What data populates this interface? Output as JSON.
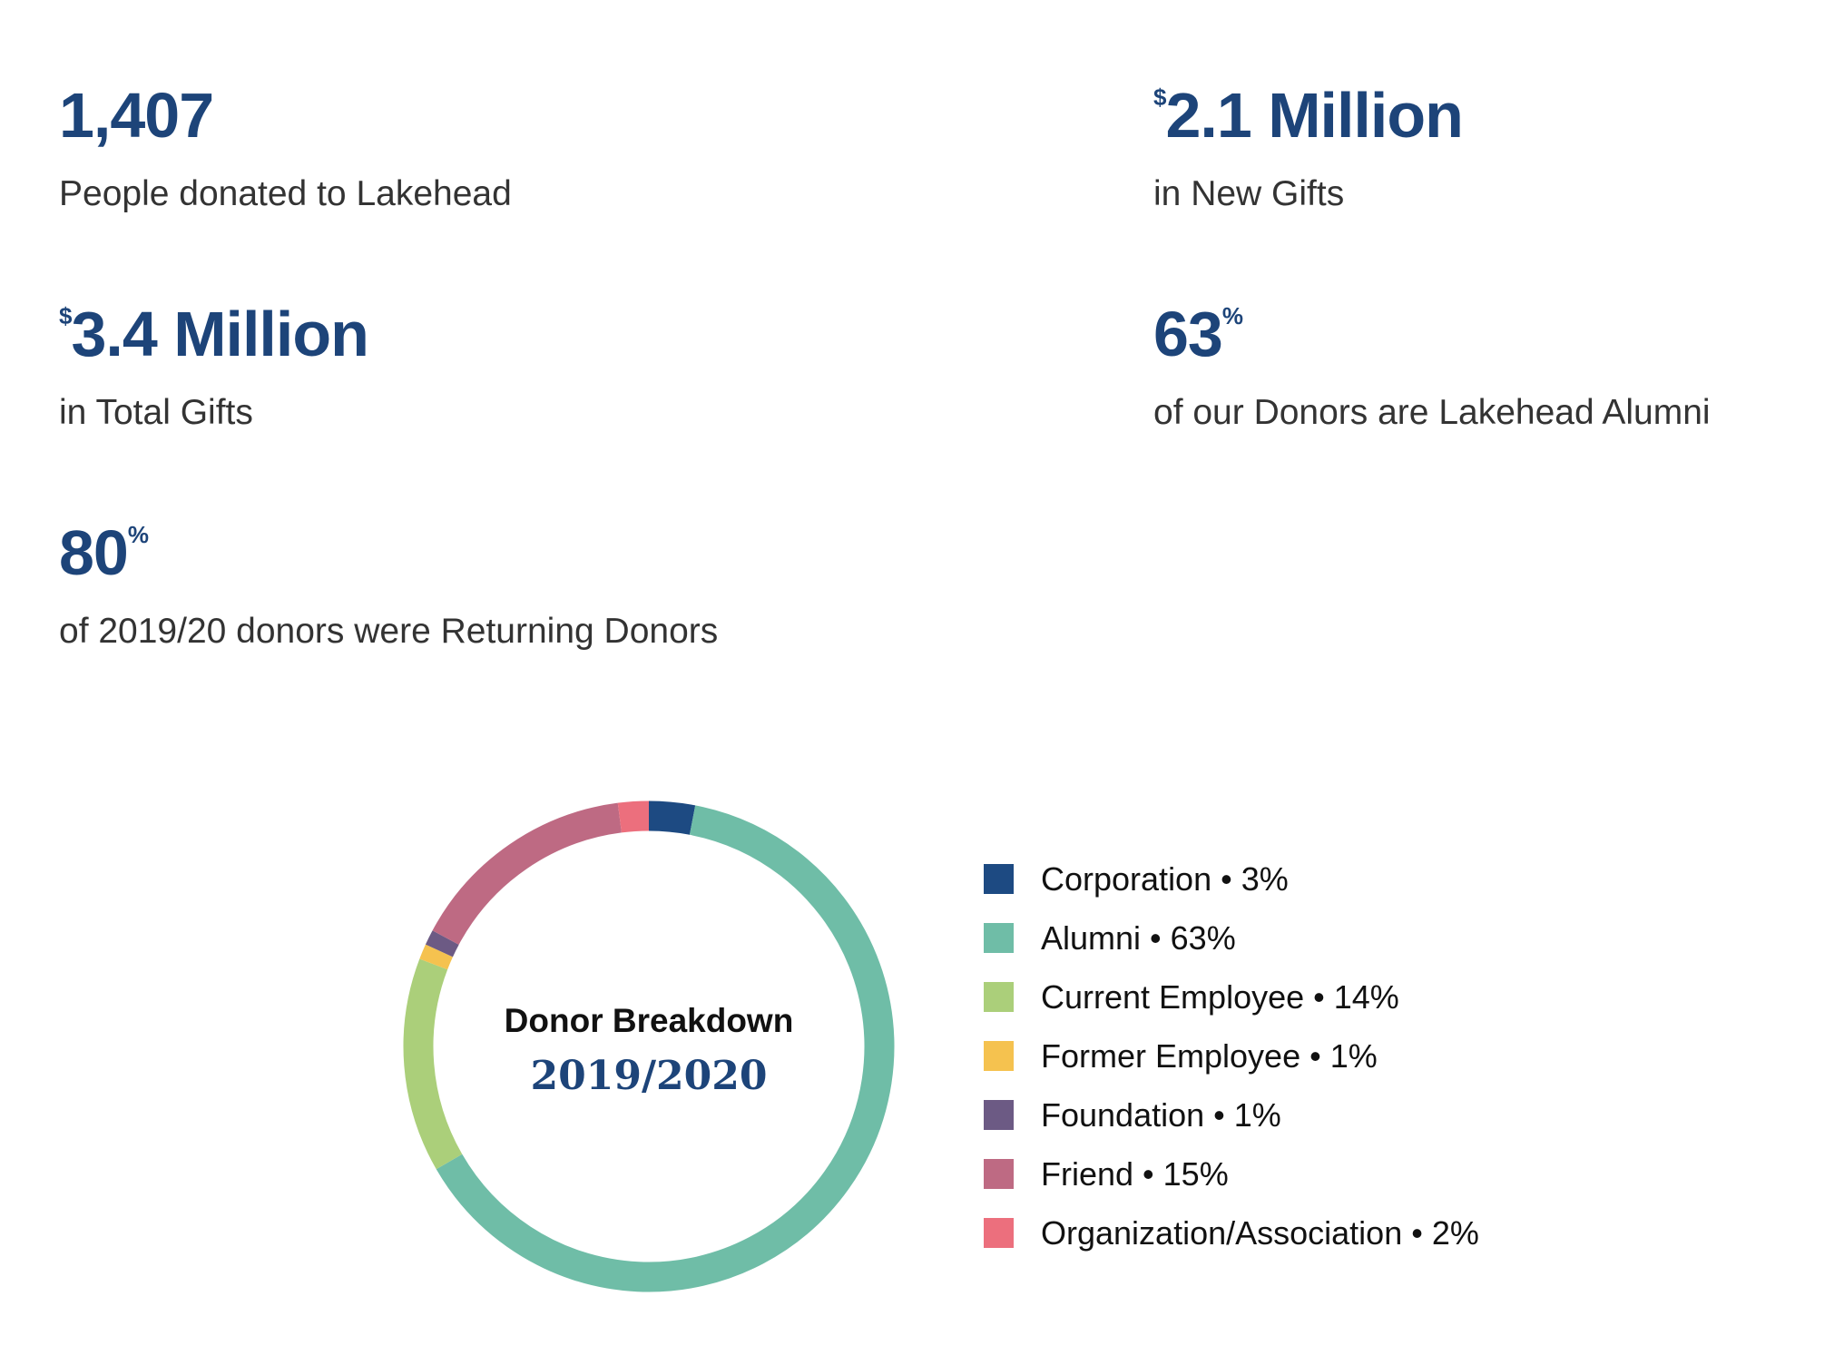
{
  "stats": [
    {
      "prefix": "",
      "value": "1,407",
      "suffix": "",
      "caption": "People donated to Lakehead"
    },
    {
      "prefix": "$",
      "value": "2.1 Million",
      "suffix": "",
      "caption": "in New Gifts"
    },
    {
      "prefix": "$",
      "value": "3.4 Million",
      "suffix": "",
      "caption": "in Total Gifts"
    },
    {
      "prefix": "",
      "value": "63",
      "suffix": "%",
      "caption": "of our Donors are Lakehead Alumni"
    },
    {
      "prefix": "",
      "value": "80",
      "suffix": "%",
      "caption": "of 2019/20 donors were Returning Donors"
    }
  ],
  "chart_data": {
    "type": "pie",
    "title": "Donor Breakdown",
    "subtitle": "2019/2020",
    "legend_position": "right",
    "slices": [
      {
        "label": "Corporation • 3%",
        "name": "Corporation",
        "value": 3,
        "color": "#1d4a82"
      },
      {
        "label": "Alumni • 63%",
        "name": "Alumni",
        "value": 63,
        "color": "#6fbda7"
      },
      {
        "label": "Current Employee • 14%",
        "name": "Current Employee",
        "value": 14,
        "color": "#abcf7a"
      },
      {
        "label": "Former Employee • 1%",
        "name": "Former Employee",
        "value": 1,
        "color": "#f5c24f"
      },
      {
        "label": "Foundation • 1%",
        "name": "Foundation",
        "value": 1,
        "color": "#6c5a84"
      },
      {
        "label": "Friend • 15%",
        "name": "Friend",
        "value": 15,
        "color": "#be6a83"
      },
      {
        "label": "Organization/Association • 2%",
        "name": "Organization/Association",
        "value": 2,
        "color": "#ec6f7d"
      }
    ]
  }
}
